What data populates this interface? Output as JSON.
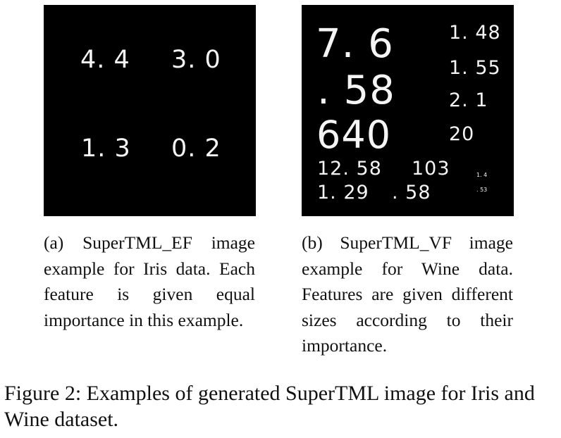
{
  "panel_a": {
    "values": [
      "4. 4",
      "3. 0",
      "1. 3",
      "0. 2"
    ]
  },
  "panel_b": {
    "values": [
      "7. 6",
      ". 58",
      "640",
      "1. 48",
      "1. 55",
      "2. 1",
      "20",
      "12. 58",
      "103",
      "1. 29",
      ". 58",
      "1. 4",
      ". 53"
    ]
  },
  "caption_a": "(a) SuperTML_EF image example for Iris data. Each feature is given equal importance in this example.",
  "caption_b": "(b) SuperTML_VF image example for Wine data. Features are given dif­ferent sizes according to their importance.",
  "figure_caption": "Figure 2: Examples of generated SuperTML image for Iris and Wine dataset."
}
